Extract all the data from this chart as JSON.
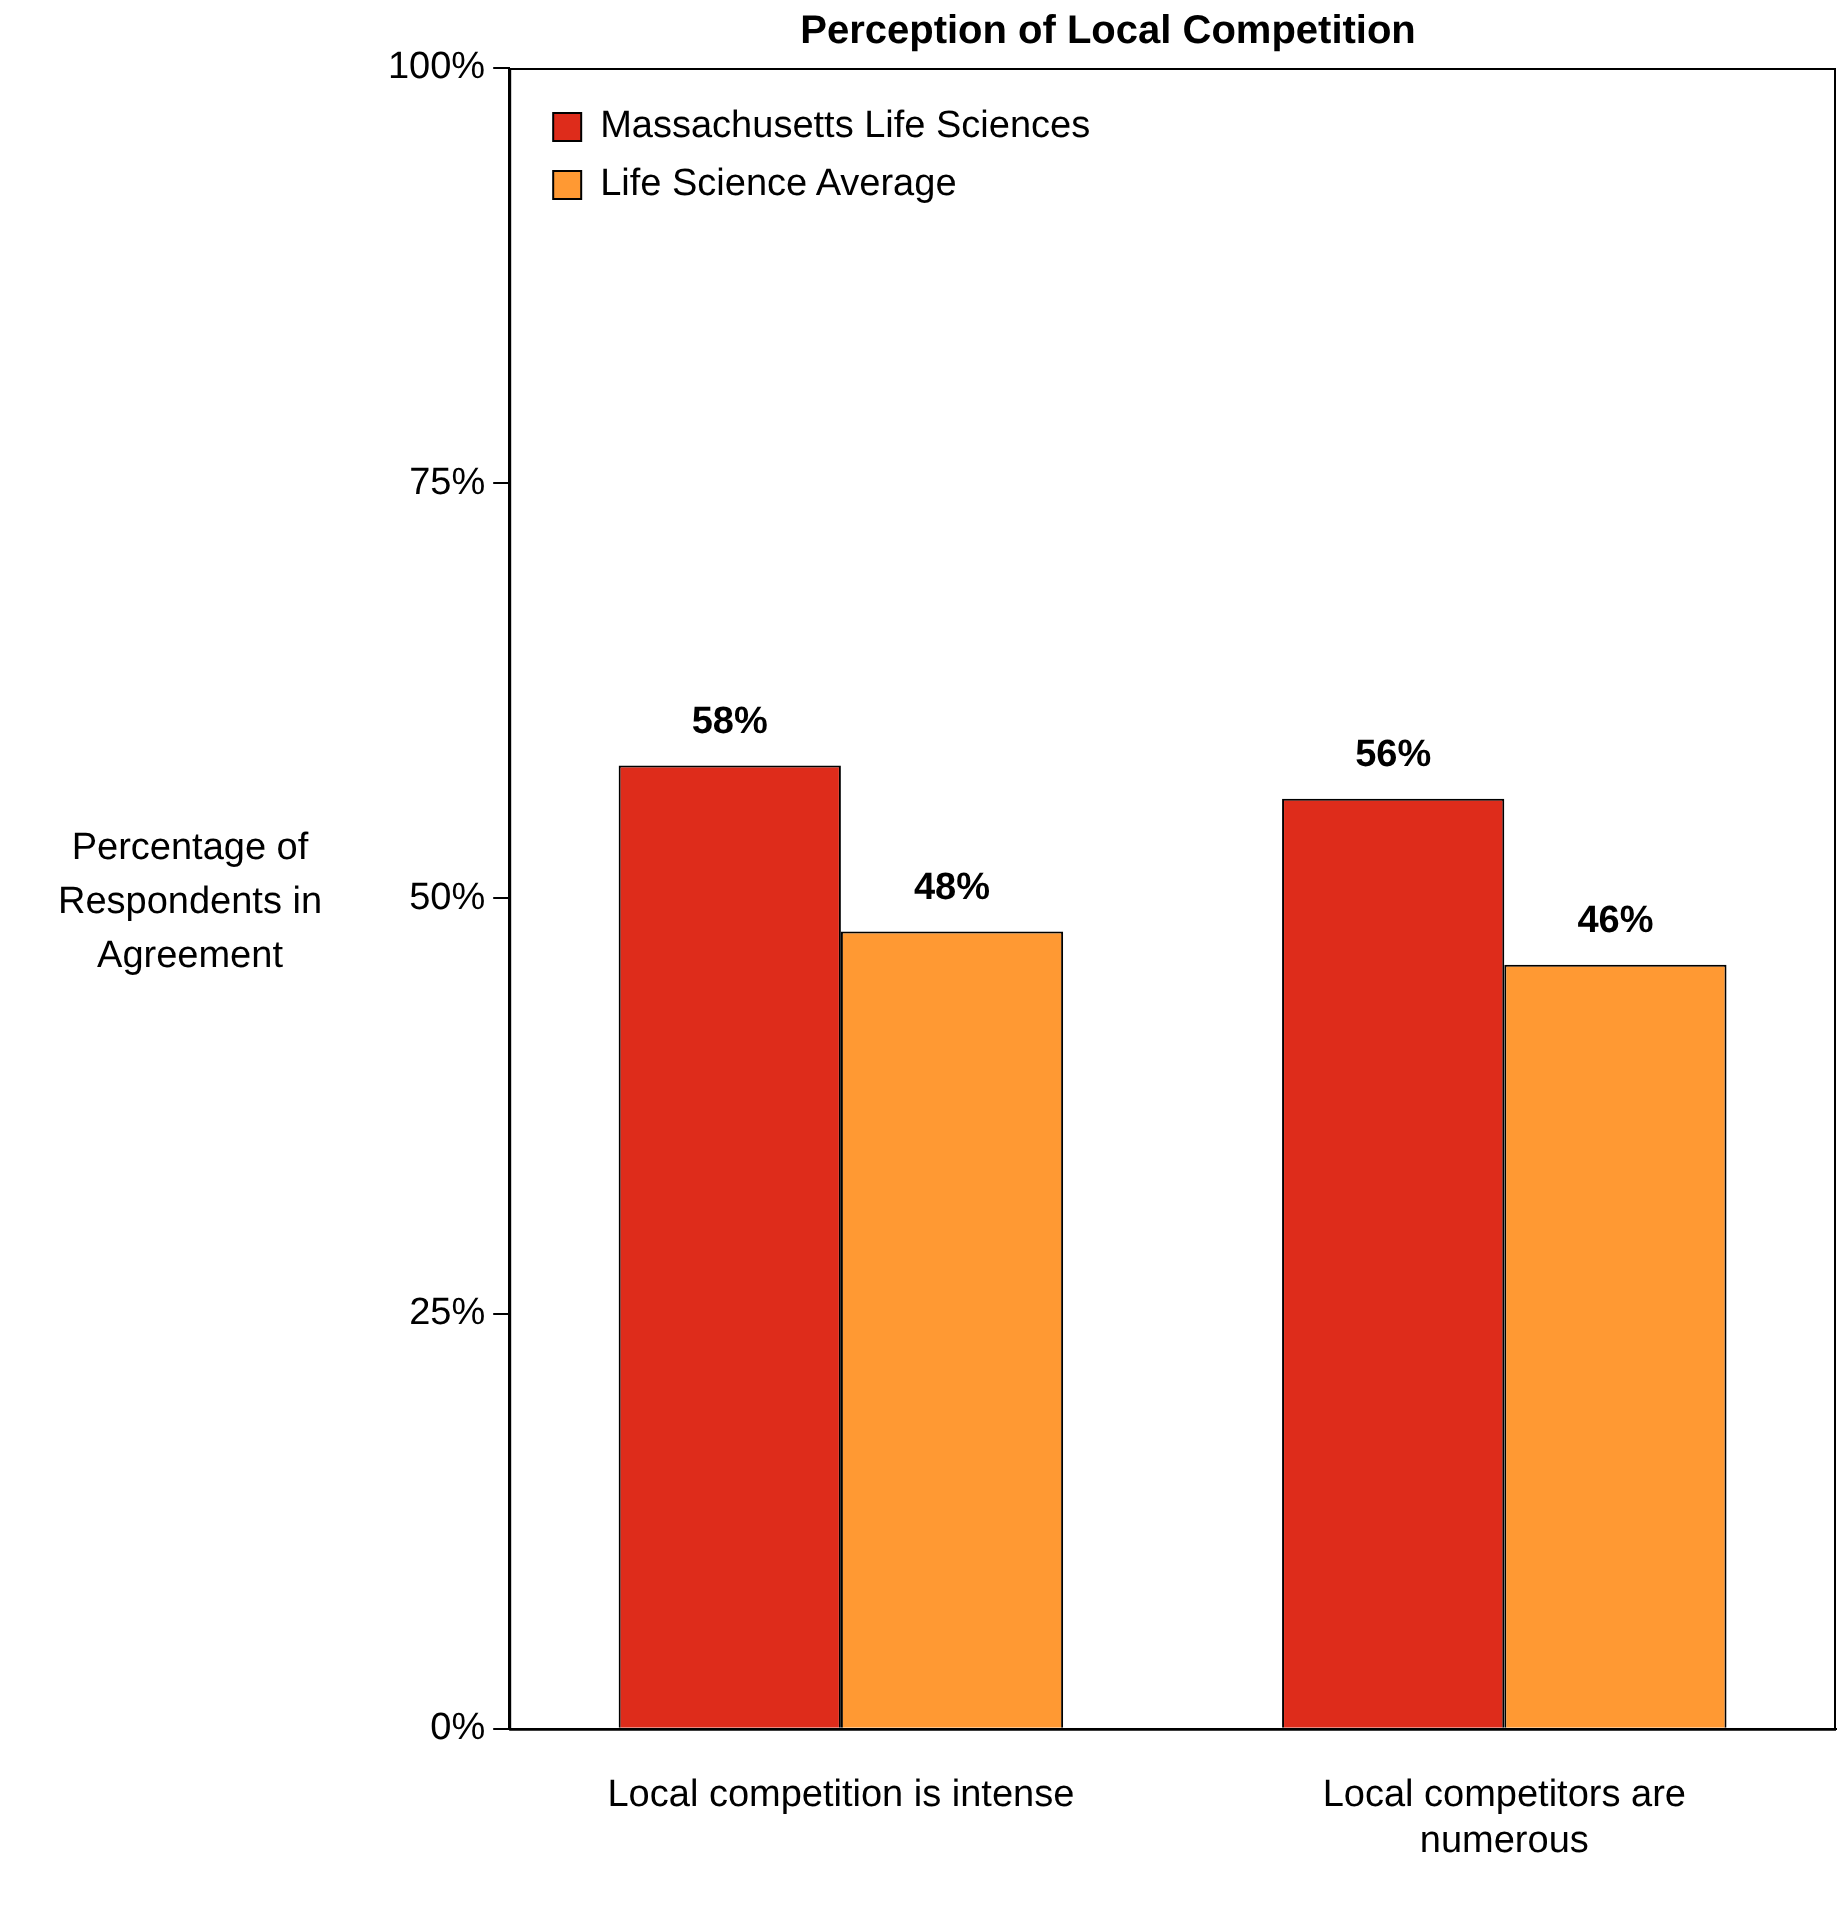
{
  "chart_data": {
    "type": "bar",
    "title": "Perception of Local Competition",
    "ylabel": "Percentage of Respondents in Agreement",
    "categories": [
      "Local competition is intense",
      "Local competitors are numerous"
    ],
    "series": [
      {
        "name": "Massachusetts Life Sciences",
        "color": "#de2c1b",
        "values": [
          58,
          56
        ],
        "value_labels": [
          "58%",
          "56%"
        ]
      },
      {
        "name": "Life Science Average",
        "color": "#ff9933",
        "values": [
          48,
          46
        ],
        "value_labels": [
          "48%",
          "46%"
        ]
      }
    ],
    "ylim": [
      0,
      100
    ],
    "yticks": [
      {
        "value": 0,
        "label": "0%"
      },
      {
        "value": 25,
        "label": "25%"
      },
      {
        "value": 50,
        "label": "50%"
      },
      {
        "value": 75,
        "label": "75%"
      },
      {
        "value": 100,
        "label": "100%"
      }
    ],
    "grid": false,
    "legend": "top left"
  }
}
